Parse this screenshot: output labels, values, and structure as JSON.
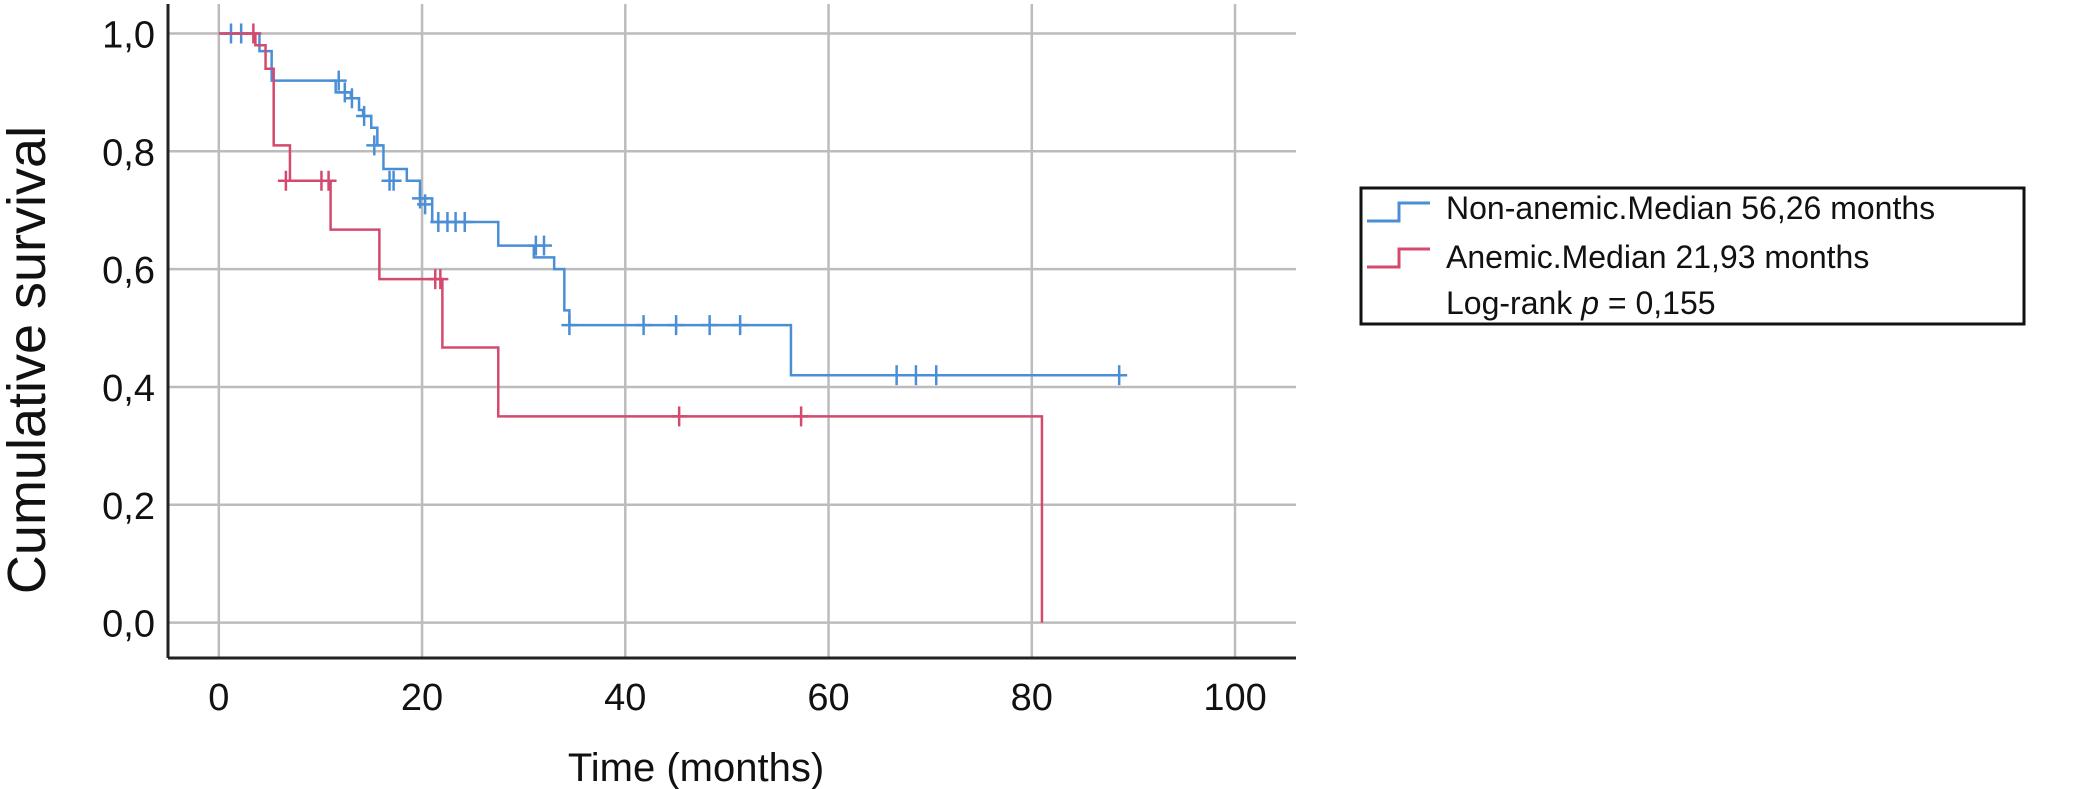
{
  "chart_data": {
    "type": "line",
    "subtype": "kaplan-meier",
    "title": "",
    "xlabel": "Time (months)",
    "ylabel": "Cumulative survival",
    "xlim": [
      -5,
      106
    ],
    "ylim": [
      -0.06,
      1.05
    ],
    "xticks": [
      0,
      20,
      40,
      60,
      80,
      100
    ],
    "xtick_labels": [
      "0",
      "20",
      "40",
      "60",
      "80",
      "100"
    ],
    "yticks": [
      0.0,
      0.2,
      0.4,
      0.6,
      0.8,
      1.0
    ],
    "ytick_labels": [
      "0,0",
      "0,2",
      "0,4",
      "0,6",
      "0,8",
      "1,0"
    ],
    "grid": true,
    "legend_position": "right",
    "series": [
      {
        "name": "Non-anemic.Median 56,26 months",
        "color": "#4a8fd6",
        "x": [
          0,
          4.0,
          5.2,
          11.5,
          13.0,
          13.8,
          14.2,
          15.0,
          15.6,
          16.2,
          18.5,
          19.8,
          21.0,
          27.5,
          31.0,
          33.0,
          34.0,
          34.5,
          56.3,
          89.0
        ],
        "y": [
          1.0,
          0.97,
          0.92,
          0.9,
          0.89,
          0.87,
          0.86,
          0.84,
          0.81,
          0.77,
          0.75,
          0.72,
          0.68,
          0.64,
          0.62,
          0.6,
          0.53,
          0.505,
          0.42,
          0.42
        ],
        "censored_x": [
          1.2,
          2.2,
          11.8,
          12.4,
          13.1,
          14.3,
          15.3,
          16.8,
          17.2,
          19.8,
          20.3,
          21.6,
          22.5,
          23.3,
          24.2,
          31.2,
          32.0,
          34.5,
          41.8,
          45.0,
          48.3,
          51.3,
          66.7,
          68.6,
          70.6,
          88.6
        ],
        "censored_y": [
          1.0,
          1.0,
          0.92,
          0.9,
          0.89,
          0.86,
          0.81,
          0.75,
          0.75,
          0.72,
          0.71,
          0.68,
          0.68,
          0.68,
          0.68,
          0.64,
          0.64,
          0.505,
          0.505,
          0.505,
          0.505,
          0.505,
          0.42,
          0.42,
          0.42,
          0.42
        ]
      },
      {
        "name": "Anemic.Median 21,93 months",
        "color": "#d44a6e",
        "x": [
          0,
          3.6,
          4.6,
          5.4,
          7.0,
          11.0,
          15.8,
          22.0,
          27.5,
          81.0
        ],
        "y": [
          1.0,
          0.98,
          0.94,
          0.81,
          0.75,
          0.667,
          0.583,
          0.467,
          0.35,
          0.0
        ],
        "censored_x": [
          3.4,
          6.6,
          10.1,
          10.8,
          21.3,
          21.8,
          45.3,
          57.3
        ],
        "censored_y": [
          1.0,
          0.75,
          0.75,
          0.75,
          0.583,
          0.583,
          0.35,
          0.35
        ]
      }
    ],
    "annotations": [
      "Log-rank ",
      "p",
      " = 0,155"
    ]
  }
}
